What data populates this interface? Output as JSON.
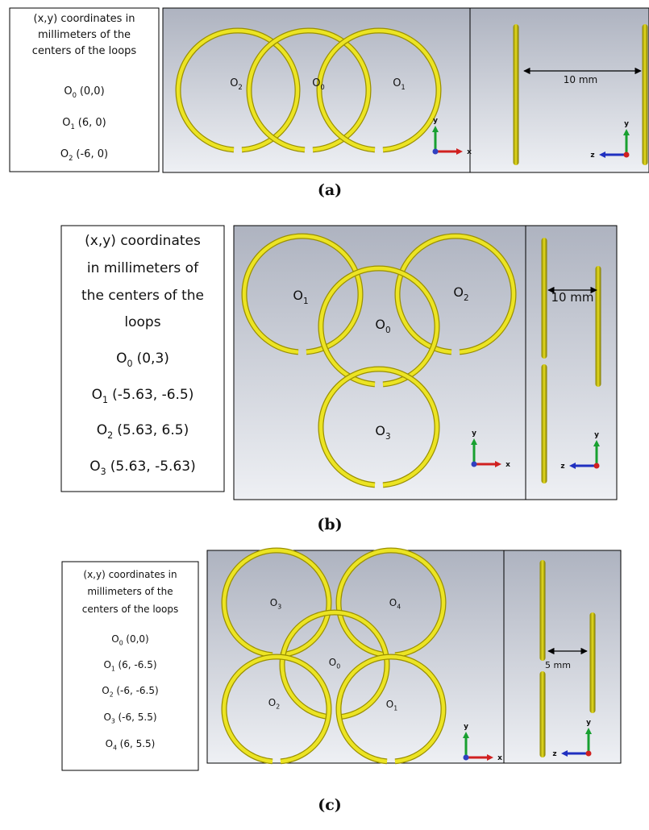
{
  "panels": [
    {
      "caption": "(a)",
      "legend": {
        "heading": [
          "(x,y) coordinates in",
          "millimeters of the",
          "centers of the loops"
        ],
        "entries": [
          {
            "label": "O",
            "sub": "0",
            "coords": "(0,0)"
          },
          {
            "label": "O",
            "sub": "1",
            "coords": "(6, 0)"
          },
          {
            "label": "O",
            "sub": "2",
            "coords": "(-6, 0)"
          }
        ]
      },
      "loops": [
        {
          "label": "O",
          "sub": "2"
        },
        {
          "label": "O",
          "sub": "0"
        },
        {
          "label": "O",
          "sub": "1"
        }
      ],
      "dimension": "10 mm",
      "front_axes": [
        "y",
        "x"
      ],
      "side_axes": [
        "y",
        "z"
      ]
    },
    {
      "caption": "(b)",
      "legend": {
        "heading": [
          "(x,y) coordinates",
          "in millimeters of",
          "the centers of the",
          "loops"
        ],
        "entries": [
          {
            "label": "O",
            "sub": "0",
            "coords": "(0,3)"
          },
          {
            "label": "O",
            "sub": "1",
            "coords": "(-5.63, -6.5)"
          },
          {
            "label": "O",
            "sub": "2",
            "coords": "(5.63, 6.5)"
          },
          {
            "label": "O",
            "sub": "3",
            "coords": "(5.63, -5.63)"
          }
        ]
      },
      "loops": [
        {
          "label": "O",
          "sub": "1"
        },
        {
          "label": "O",
          "sub": "2"
        },
        {
          "label": "O",
          "sub": "0"
        },
        {
          "label": "O",
          "sub": "3"
        }
      ],
      "dimension": "10 mm",
      "front_axes": [
        "y",
        "x"
      ],
      "side_axes": [
        "y",
        "z"
      ]
    },
    {
      "caption": "(c)",
      "legend": {
        "heading": [
          "(x,y) coordinates in",
          "millimeters of the",
          "centers of the loops"
        ],
        "entries": [
          {
            "label": "O",
            "sub": "0",
            "coords": "(0,0)"
          },
          {
            "label": "O",
            "sub": "1",
            "coords": "(6, -6.5)"
          },
          {
            "label": "O",
            "sub": "2",
            "coords": "(-6, -6.5)"
          },
          {
            "label": "O",
            "sub": "3",
            "coords": "(-6, 5.5)"
          },
          {
            "label": "O",
            "sub": "4",
            "coords": "(6, 5.5)"
          }
        ]
      },
      "loops": [
        {
          "label": "O",
          "sub": "3"
        },
        {
          "label": "O",
          "sub": "4"
        },
        {
          "label": "O",
          "sub": "0"
        },
        {
          "label": "O",
          "sub": "2"
        },
        {
          "label": "O",
          "sub": "1"
        }
      ],
      "dimension": "5 mm",
      "front_axes": [
        "y",
        "x"
      ],
      "side_axes": [
        "y",
        "z"
      ]
    }
  ]
}
